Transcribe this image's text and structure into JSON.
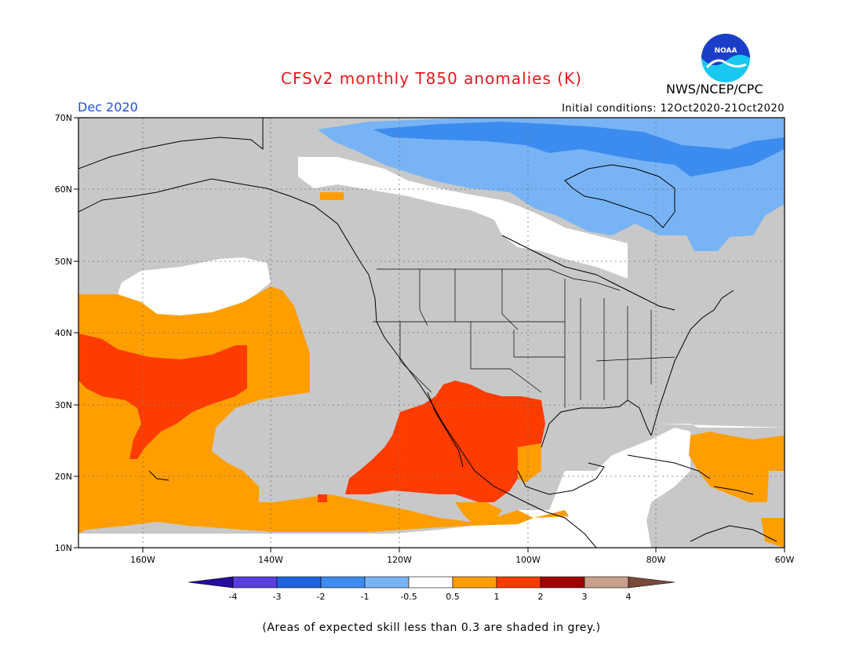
{
  "header": {
    "title": "CFSv2 monthly T850 anomalies (K)",
    "month": "Dec 2020",
    "initial_conditions": "Initial conditions: 12Oct2020-21Oct2020",
    "agency": "NWS/NCEP/CPC",
    "logo_text": "NOAA"
  },
  "map": {
    "lat_labels": [
      "70N",
      "60N",
      "50N",
      "40N",
      "30N",
      "20N",
      "10N"
    ],
    "lon_labels": [
      "160W",
      "140W",
      "120W",
      "100W",
      "80W",
      "60W"
    ],
    "colors": {
      "grey": "#c8c8c8",
      "white": "#ffffff",
      "orange": "#ff9e00",
      "red": "#ff3c00",
      "lightblue": "#78b4f5",
      "blue": "#3c8cf0"
    },
    "regions": [
      {
        "name": "north-pacific-warm-band",
        "anomaly": "0.5 to 1"
      },
      {
        "name": "north-pacific-strong-warm",
        "anomaly": "1 to 2"
      },
      {
        "name": "baja-mexico-strong-warm",
        "anomaly": "1 to 2"
      },
      {
        "name": "caribbean-warm",
        "anomaly": "0.5 to 1"
      },
      {
        "name": "canada-cold",
        "anomaly": "-1 to -0.5"
      },
      {
        "name": "hudson-bay-cold",
        "anomaly": "-2 to -1"
      }
    ]
  },
  "colorbar": {
    "labels": [
      "-4",
      "-3",
      "-2",
      "-1",
      "-0.5",
      "0.5",
      "1",
      "2",
      "3",
      "4"
    ],
    "colors": [
      "#240ea0",
      "#5a3fdc",
      "#1e64dc",
      "#3c8cf0",
      "#78b4f5",
      "#ffffff",
      "#ff9e00",
      "#ff3c00",
      "#a00000",
      "#c8a08c",
      "#7a4a3a"
    ]
  },
  "footnote": "(Areas of expected skill less than 0.3 are shaded in grey.)"
}
